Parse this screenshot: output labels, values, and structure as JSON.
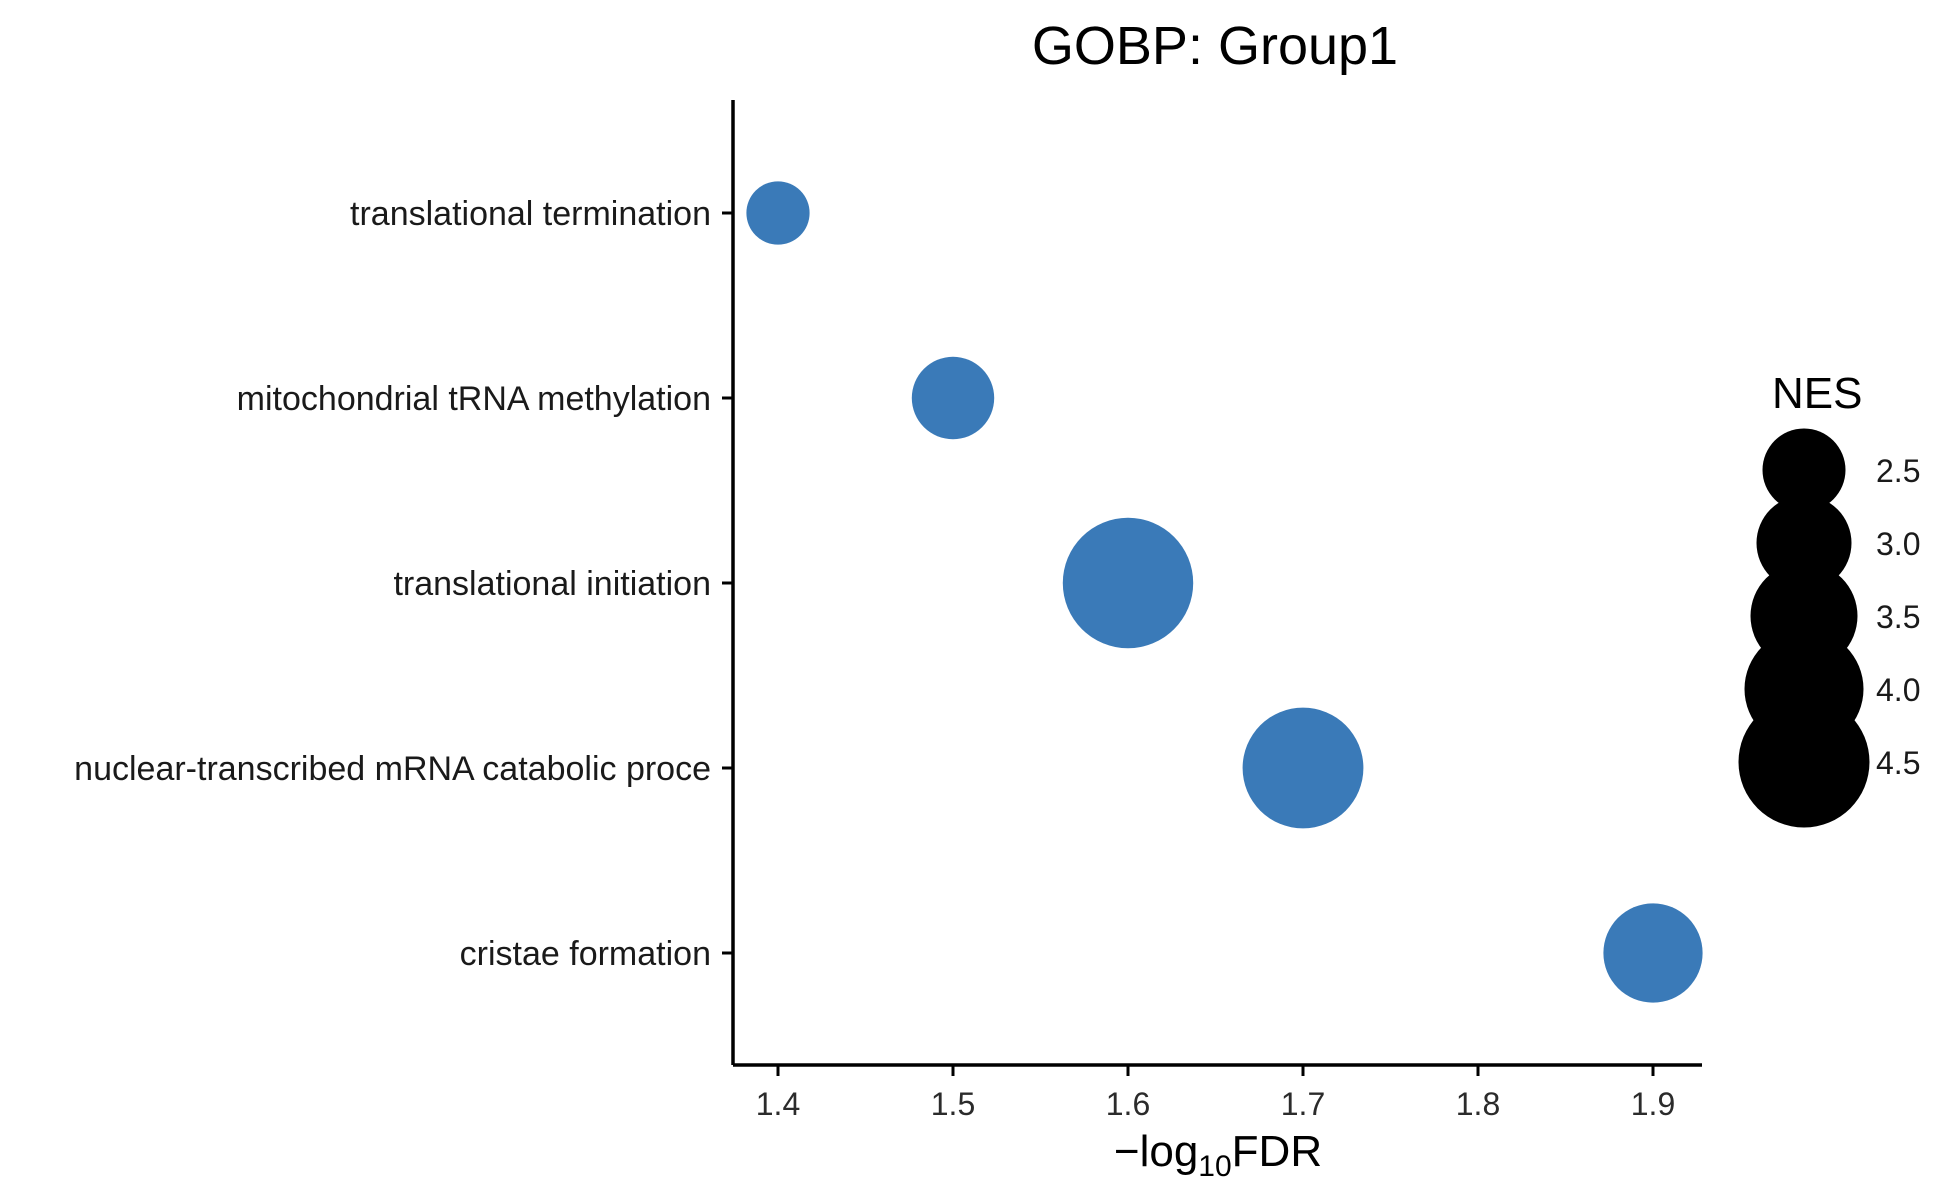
{
  "chart_data": {
    "type": "scatter",
    "title": "GOBP: Group1",
    "xlabel": {
      "prefix": "−log",
      "subscript": "10",
      "suffix": "FDR"
    },
    "xlim": [
      1.375,
      1.925
    ],
    "xticks": [
      "1.4",
      "1.5",
      "1.6",
      "1.7",
      "1.8",
      "1.9"
    ],
    "point_color": "#3a7ab8",
    "categories": [
      "translational termination",
      "mitochondrial tRNA methylation",
      "translational initiation",
      "nuclear-transcribed mRNA catabolic proce",
      "cristae formation"
    ],
    "points": [
      {
        "category": "translational termination",
        "x": 1.4,
        "nes": 1.8
      },
      {
        "category": "mitochondrial tRNA methylation",
        "x": 1.5,
        "nes": 2.6
      },
      {
        "category": "translational initiation",
        "x": 1.6,
        "nes": 4.6
      },
      {
        "category": "nuclear-transcribed mRNA catabolic proce",
        "x": 1.7,
        "nes": 4.2
      },
      {
        "category": "cristae formation",
        "x": 1.9,
        "nes": 3.3
      }
    ],
    "legend": {
      "title": "NES",
      "placement": "right",
      "color": "#000000",
      "values": [
        2.5,
        3.0,
        3.5,
        4.0,
        4.5
      ],
      "labels": [
        "2.5",
        "3.0",
        "3.5",
        "4.0",
        "4.5"
      ]
    }
  }
}
